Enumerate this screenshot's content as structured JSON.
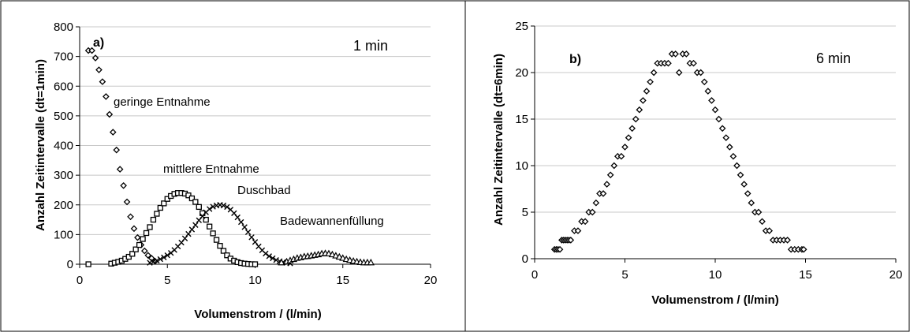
{
  "chart_data": [
    {
      "type": "scatter",
      "panel_label": "a)",
      "annotation": "1 min",
      "xlabel": "Volumenstrom / (l/min)",
      "ylabel": "Anzahl Zeitintervalle (dt=1min)",
      "xlim": [
        0,
        20
      ],
      "ylim": [
        0,
        800
      ],
      "xticks": [
        "0",
        "5",
        "10",
        "15",
        "20"
      ],
      "yticks": [
        "0",
        "100",
        "200",
        "300",
        "400",
        "500",
        "600",
        "700",
        "800"
      ],
      "grid": "horizontal",
      "series": [
        {
          "name": "geringe Entnahme",
          "marker": "diamond",
          "x": [
            0.5,
            0.7,
            0.9,
            1.1,
            1.3,
            1.5,
            1.7,
            1.9,
            2.1,
            2.3,
            2.5,
            2.7,
            2.9,
            3.1,
            3.3,
            3.5,
            3.7,
            3.9,
            4.1,
            4.3
          ],
          "y": [
            720,
            720,
            695,
            655,
            615,
            565,
            505,
            445,
            385,
            320,
            265,
            210,
            160,
            120,
            90,
            65,
            45,
            30,
            20,
            10
          ]
        },
        {
          "name": "mittlere Entnahme",
          "marker": "square",
          "x": [
            0.5,
            1.8,
            2.0,
            2.2,
            2.4,
            2.6,
            2.8,
            3.0,
            3.2,
            3.4,
            3.6,
            3.8,
            4.0,
            4.2,
            4.4,
            4.6,
            4.8,
            5.0,
            5.2,
            5.4,
            5.6,
            5.8,
            6.0,
            6.2,
            6.4,
            6.6,
            6.8,
            7.0,
            7.2,
            7.4,
            7.6,
            7.8,
            8.0,
            8.2,
            8.4,
            8.6,
            8.8,
            9.0,
            9.2,
            9.4,
            9.6,
            9.8,
            10.0
          ],
          "y": [
            0,
            2,
            5,
            8,
            12,
            18,
            25,
            35,
            50,
            65,
            85,
            105,
            125,
            150,
            170,
            190,
            205,
            220,
            230,
            237,
            240,
            240,
            238,
            232,
            222,
            210,
            193,
            172,
            150,
            127,
            104,
            82,
            62,
            45,
            30,
            19,
            12,
            7,
            4,
            2,
            1,
            0,
            0
          ]
        },
        {
          "name": "Duschbad",
          "marker": "cross",
          "x": [
            4.0,
            4.2,
            4.4,
            4.6,
            4.8,
            5.0,
            5.2,
            5.4,
            5.6,
            5.8,
            6.0,
            6.2,
            6.4,
            6.6,
            6.8,
            7.0,
            7.2,
            7.4,
            7.6,
            7.8,
            8.0,
            8.2,
            8.4,
            8.6,
            8.8,
            9.0,
            9.2,
            9.4,
            9.6,
            9.8,
            10.0,
            10.2,
            10.4,
            10.6,
            10.8,
            11.0,
            11.2,
            11.4,
            11.6,
            11.8,
            12.0
          ],
          "y": [
            5,
            8,
            12,
            17,
            23,
            30,
            38,
            48,
            60,
            73,
            87,
            102,
            117,
            132,
            148,
            162,
            175,
            186,
            194,
            198,
            200,
            198,
            193,
            184,
            172,
            158,
            142,
            125,
            108,
            91,
            75,
            60,
            47,
            36,
            27,
            20,
            14,
            10,
            7,
            5,
            3
          ]
        },
        {
          "name": "Badewannenfüllung",
          "marker": "triangle",
          "x": [
            11.5,
            11.8,
            12.0,
            12.2,
            12.4,
            12.6,
            12.8,
            13.0,
            13.2,
            13.4,
            13.6,
            13.8,
            14.0,
            14.2,
            14.4,
            14.6,
            14.8,
            15.0,
            15.2,
            15.4,
            15.6,
            15.8,
            16.0,
            16.2,
            16.4,
            16.6
          ],
          "y": [
            5,
            8,
            12,
            16,
            20,
            22,
            25,
            26,
            28,
            30,
            32,
            35,
            36,
            35,
            32,
            28,
            24,
            20,
            16,
            13,
            10,
            8,
            6,
            5,
            5,
            5
          ]
        }
      ]
    },
    {
      "type": "scatter",
      "panel_label": "b)",
      "annotation": "6 min",
      "xlabel": "Volumenstrom / (l/min)",
      "ylabel": "Anzahl Zeitintervalle (dt=6min)",
      "xlim": [
        0,
        20
      ],
      "ylim": [
        0,
        25
      ],
      "xticks": [
        "0",
        "5",
        "10",
        "15",
        "20"
      ],
      "yticks": [
        "0",
        "5",
        "10",
        "15",
        "20",
        "25"
      ],
      "grid": "horizontal",
      "series": [
        {
          "marker": "diamond",
          "x": [
            1.1,
            1.2,
            1.3,
            1.4,
            1.5,
            1.6,
            1.7,
            1.8,
            1.9,
            2.0,
            2.2,
            2.4,
            2.6,
            2.8,
            3.0,
            3.2,
            3.4,
            3.6,
            3.8,
            4.0,
            4.2,
            4.4,
            4.6,
            4.8,
            5.0,
            5.2,
            5.4,
            5.6,
            5.8,
            6.0,
            6.2,
            6.4,
            6.6,
            6.8,
            7.0,
            7.2,
            7.4,
            7.6,
            7.8,
            8.0,
            8.2,
            8.4,
            8.6,
            8.8,
            9.0,
            9.2,
            9.4,
            9.6,
            9.8,
            10.0,
            10.2,
            10.4,
            10.6,
            10.8,
            11.0,
            11.2,
            11.4,
            11.6,
            11.8,
            12.0,
            12.2,
            12.4,
            12.6,
            12.8,
            13.0,
            13.2,
            13.4,
            13.6,
            13.8,
            14.0,
            14.2,
            14.4,
            14.6,
            14.8,
            14.9
          ],
          "y": [
            1,
            1,
            1,
            1,
            2,
            2,
            2,
            2,
            2,
            2,
            3,
            3,
            4,
            4,
            5,
            5,
            6,
            7,
            7,
            8,
            9,
            10,
            11,
            11,
            12,
            13,
            14,
            15,
            16,
            17,
            18,
            19,
            20,
            21,
            21,
            21,
            21,
            22,
            22,
            20,
            22,
            22,
            21,
            21,
            20,
            20,
            19,
            18,
            17,
            16,
            15,
            14,
            13,
            12,
            11,
            10,
            9,
            8,
            7,
            6,
            5,
            5,
            4,
            3,
            3,
            2,
            2,
            2,
            2,
            2,
            1,
            1,
            1,
            1,
            1
          ]
        }
      ]
    }
  ]
}
